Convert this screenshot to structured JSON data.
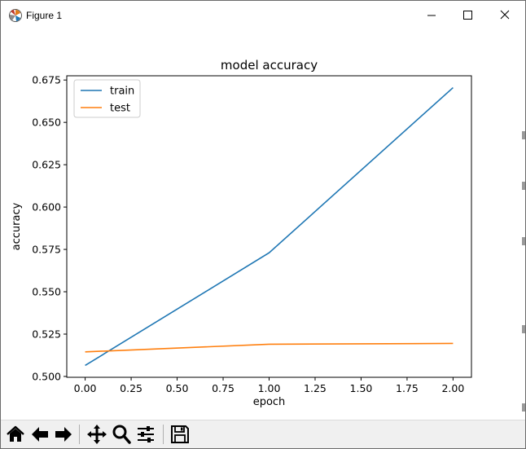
{
  "window": {
    "title": "Figure 1",
    "app_icon": "matplotlib-icon",
    "controls": [
      "minimize-icon",
      "maximize-icon",
      "close-icon"
    ]
  },
  "toolbar": {
    "buttons": [
      "home-icon",
      "back-arrow-icon",
      "forward-arrow-icon",
      "pan-icon",
      "zoom-icon",
      "subplots-config-icon",
      "save-icon"
    ]
  },
  "colors": {
    "train": "#1f77b4",
    "test": "#ff7f0e"
  },
  "chart_data": {
    "type": "line",
    "title": "model accuracy",
    "xlabel": "epoch",
    "ylabel": "accuracy",
    "xlim": [
      -0.1,
      2.1
    ],
    "ylim": [
      0.4995,
      0.6775
    ],
    "xticks": [
      "0.00",
      "0.25",
      "0.50",
      "0.75",
      "1.00",
      "1.25",
      "1.50",
      "1.75",
      "2.00"
    ],
    "yticks": [
      "0.500",
      "0.525",
      "0.550",
      "0.575",
      "0.600",
      "0.625",
      "0.650",
      "0.675"
    ],
    "legend": "upper-left",
    "grid": false,
    "x": [
      0,
      1,
      2
    ],
    "series": [
      {
        "name": "train",
        "values": [
          0.5065,
          0.573,
          0.6705
        ]
      },
      {
        "name": "test",
        "values": [
          0.5145,
          0.519,
          0.5195
        ]
      }
    ]
  }
}
